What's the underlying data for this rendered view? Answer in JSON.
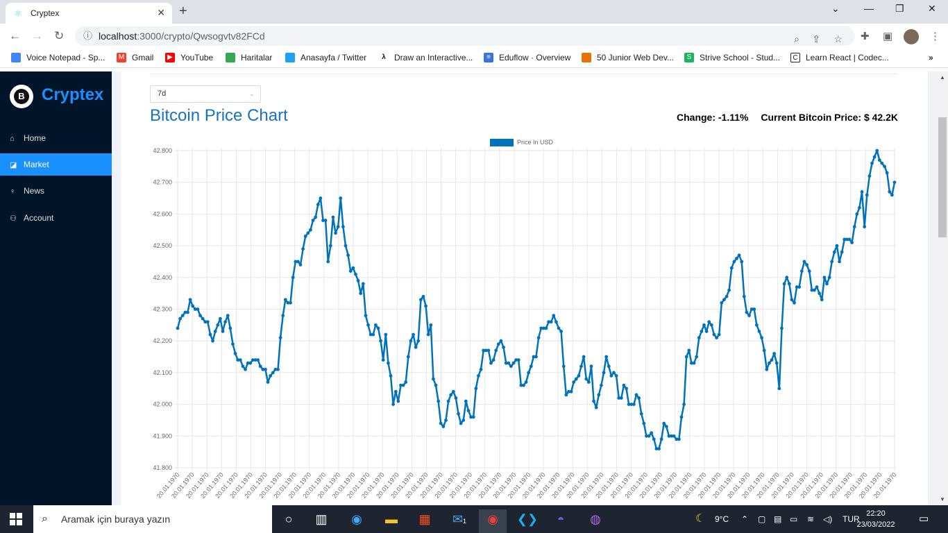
{
  "browser": {
    "tab_title": "Cryptex",
    "url_host": "localhost",
    "url_rest": ":3000/crypto/Qwsogvtv82FCd",
    "bookmarks": [
      {
        "label": "Voice Notepad - Sp...",
        "color": "#4285f4"
      },
      {
        "label": "Gmail",
        "color": "#ea4335"
      },
      {
        "label": "YouTube",
        "color": "#ff0000"
      },
      {
        "label": "Haritalar",
        "color": "#34a853"
      },
      {
        "label": "Anasayfa / Twitter",
        "color": "#1da1f2"
      },
      {
        "label": "Draw an Interactive...",
        "color": "#111111"
      },
      {
        "label": "Eduflow · Overview",
        "color": "#3b6ee8"
      },
      {
        "label": "50 Junior Web Dev...",
        "color": "#e8710a"
      },
      {
        "label": "Strive School - Stud...",
        "color": "#1bb55c"
      },
      {
        "label": "Learn React | Codec...",
        "color": "#222222"
      }
    ]
  },
  "sidebar": {
    "brand": "Cryptex",
    "logo_letter": "B",
    "items": [
      {
        "label": "Home",
        "icon": "home-icon"
      },
      {
        "label": "Market",
        "icon": "chart-icon"
      },
      {
        "label": "News",
        "icon": "bulb-icon"
      },
      {
        "label": "Account",
        "icon": "users-icon"
      }
    ],
    "active_index": 1,
    "accent": "#1890ff",
    "background": "#001529"
  },
  "page": {
    "period_selected": "7d",
    "title": "Bitcoin Price Chart",
    "change_text": "Change: -1.11%",
    "price_text": "Current Bitcoin Price: $ 42.2K"
  },
  "chart_data": {
    "type": "line",
    "legend": [
      "Price In USD"
    ],
    "legend_position": "top-center",
    "series_color": "#0071bd",
    "grid": true,
    "ylim": [
      41.8,
      42.8
    ],
    "y_ticks": [
      "41.800",
      "41.900",
      "42.000",
      "42.100",
      "42.200",
      "42.300",
      "42.400",
      "42.500",
      "42.600",
      "42.700",
      "42.800"
    ],
    "x_tick_label": "20.01.1970",
    "x_tick_count": 50,
    "series": [
      {
        "name": "Price In USD",
        "values": [
          42.24,
          42.27,
          42.28,
          42.29,
          42.29,
          42.33,
          42.31,
          42.3,
          42.3,
          42.28,
          42.27,
          42.26,
          42.26,
          42.22,
          42.2,
          42.23,
          42.25,
          42.27,
          42.23,
          42.26,
          42.28,
          42.24,
          42.19,
          42.16,
          42.14,
          42.14,
          42.12,
          42.11,
          42.13,
          42.13,
          42.14,
          42.14,
          42.14,
          42.12,
          42.11,
          42.11,
          42.07,
          42.09,
          42.1,
          42.11,
          42.11,
          42.21,
          42.28,
          42.33,
          42.32,
          42.32,
          42.4,
          42.45,
          42.45,
          42.44,
          42.49,
          42.53,
          42.54,
          42.55,
          42.58,
          42.59,
          42.63,
          42.65,
          42.58,
          42.58,
          42.45,
          42.5,
          42.59,
          42.54,
          42.56,
          42.65,
          42.56,
          42.5,
          42.47,
          42.42,
          42.43,
          42.41,
          42.39,
          42.35,
          42.38,
          42.28,
          42.25,
          42.22,
          42.22,
          42.25,
          42.24,
          42.2,
          42.14,
          42.22,
          42.13,
          42.09,
          42.0,
          42.04,
          42.01,
          42.06,
          42.06,
          42.07,
          42.15,
          42.2,
          42.22,
          42.18,
          42.2,
          42.33,
          42.34,
          42.31,
          42.22,
          42.25,
          42.08,
          42.06,
          42.01,
          41.94,
          41.93,
          41.95,
          42.01,
          42.03,
          42.04,
          42.02,
          41.97,
          41.94,
          41.95,
          42.01,
          41.98,
          41.96,
          41.96,
          42.05,
          42.09,
          42.11,
          42.17,
          42.17,
          42.17,
          42.13,
          42.14,
          42.17,
          42.19,
          42.2,
          42.18,
          42.13,
          42.13,
          42.12,
          42.13,
          42.14,
          42.14,
          42.06,
          42.06,
          42.07,
          42.1,
          42.12,
          42.15,
          42.15,
          42.21,
          42.24,
          42.24,
          42.24,
          42.26,
          42.26,
          42.28,
          42.26,
          42.24,
          42.23,
          42.12,
          42.03,
          42.04,
          42.04,
          42.07,
          42.08,
          42.09,
          42.12,
          42.15,
          42.08,
          42.07,
          42.12,
          42.01,
          41.99,
          42.03,
          42.06,
          42.1,
          42.15,
          42.12,
          42.09,
          42.1,
          42.09,
          42.02,
          42.02,
          42.06,
          42.05,
          42.0,
          42.0,
          42.0,
          42.03,
          42.02,
          41.97,
          41.94,
          41.9,
          41.9,
          41.91,
          41.89,
          41.86,
          41.86,
          41.89,
          41.94,
          41.93,
          41.9,
          41.9,
          41.9,
          41.89,
          41.89,
          41.96,
          42.0,
          42.15,
          42.17,
          42.13,
          42.13,
          42.15,
          42.21,
          42.23,
          42.25,
          42.23,
          42.26,
          42.25,
          42.22,
          42.21,
          42.22,
          42.32,
          42.33,
          42.34,
          42.36,
          42.43,
          42.45,
          42.46,
          42.47,
          42.45,
          42.34,
          42.29,
          42.28,
          42.3,
          42.3,
          42.25,
          42.23,
          42.21,
          42.17,
          42.11,
          42.13,
          42.14,
          42.16,
          42.13,
          42.05,
          42.24,
          42.38,
          42.4,
          42.38,
          42.33,
          42.32,
          42.37,
          42.37,
          42.42,
          42.45,
          42.44,
          42.42,
          42.36,
          42.36,
          42.37,
          42.35,
          42.33,
          42.4,
          42.38,
          42.4,
          42.45,
          42.48,
          42.5,
          42.45,
          42.48,
          42.52,
          42.52,
          42.52,
          42.51,
          42.56,
          42.6,
          42.62,
          42.67,
          42.56,
          42.66,
          42.72,
          42.76,
          42.78,
          42.8,
          42.77,
          42.76,
          42.75,
          42.73,
          42.67,
          42.66,
          42.7
        ]
      }
    ]
  },
  "taskbar": {
    "search_placeholder": "Aramak için buraya yazın",
    "weather": "9°C",
    "language": "TUR",
    "time": "22:20",
    "date": "23/03/2022",
    "mail_badge": "1"
  }
}
